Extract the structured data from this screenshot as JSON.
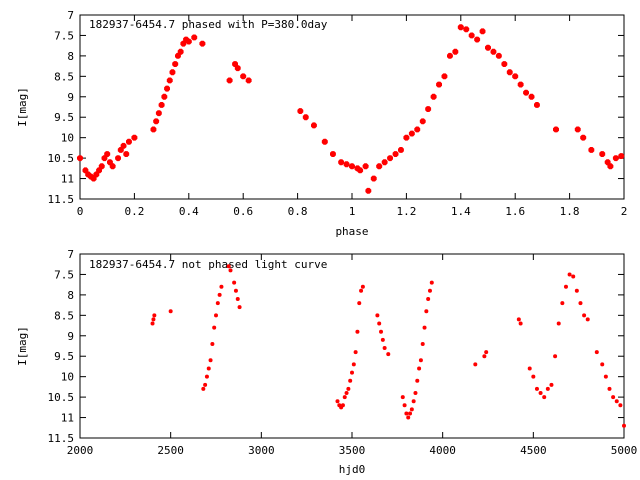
{
  "colors": {
    "points": "#ff0000",
    "axes": "#000000",
    "background": "#ffffff"
  },
  "chart_data": [
    {
      "type": "scatter",
      "title": "182937-6454.7 phased with P=380.0day",
      "xlabel": "phase",
      "ylabel": "I[mag]",
      "xlim": [
        0,
        2
      ],
      "ylim": [
        11.5,
        7
      ],
      "y_inverted": true,
      "xticks": [
        "0",
        "0.2",
        "0.4",
        "0.6",
        "0.8",
        "1",
        "1.2",
        "1.4",
        "1.6",
        "1.8",
        "2"
      ],
      "yticks": [
        "7",
        "7.5",
        "8",
        "8.5",
        "9",
        "9.5",
        "10",
        "10.5",
        "11",
        "11.5"
      ],
      "grid": false,
      "marker_color": "#ff0000",
      "series": [
        {
          "x": [
            0.0,
            0.02,
            0.03,
            0.04,
            0.05,
            0.06,
            0.07,
            0.08,
            0.09,
            0.1,
            0.11,
            0.12,
            0.14,
            0.15,
            0.16,
            0.17,
            0.18,
            0.2,
            0.27,
            0.28,
            0.29,
            0.3,
            0.31,
            0.32,
            0.33,
            0.34,
            0.35,
            0.36,
            0.37,
            0.38,
            0.39,
            0.4,
            0.42,
            0.45,
            0.55,
            0.57,
            0.58,
            0.6,
            0.62,
            0.81,
            0.83,
            0.86,
            0.9,
            0.93,
            0.96,
            0.98,
            1.0,
            1.02,
            1.03,
            1.05,
            1.06,
            1.08,
            1.1,
            1.12,
            1.14,
            1.16,
            1.18,
            1.2,
            1.22,
            1.24,
            1.26,
            1.28,
            1.3,
            1.32,
            1.34,
            1.36,
            1.38,
            1.4,
            1.42,
            1.44,
            1.46,
            1.48,
            1.5,
            1.52,
            1.54,
            1.56,
            1.58,
            1.6,
            1.62,
            1.64,
            1.66,
            1.68,
            1.75,
            1.83,
            1.85,
            1.88,
            1.92,
            1.94,
            1.95,
            1.97,
            1.99
          ],
          "y": [
            10.5,
            10.8,
            10.9,
            10.95,
            11.0,
            10.9,
            10.8,
            10.7,
            10.5,
            10.4,
            10.6,
            10.7,
            10.5,
            10.3,
            10.2,
            10.4,
            10.1,
            10.0,
            9.8,
            9.6,
            9.4,
            9.2,
            9.0,
            8.8,
            8.6,
            8.4,
            8.2,
            8.0,
            7.9,
            7.7,
            7.6,
            7.65,
            7.55,
            7.7,
            8.6,
            8.2,
            8.3,
            8.5,
            8.6,
            9.35,
            9.5,
            9.7,
            10.1,
            10.4,
            10.6,
            10.65,
            10.7,
            10.75,
            10.8,
            10.7,
            11.3,
            11.0,
            10.7,
            10.6,
            10.5,
            10.4,
            10.3,
            10.0,
            9.9,
            9.8,
            9.6,
            9.3,
            9.0,
            8.7,
            8.5,
            8.0,
            7.9,
            7.3,
            7.35,
            7.5,
            7.6,
            7.4,
            7.8,
            7.9,
            8.0,
            8.2,
            8.4,
            8.5,
            8.7,
            8.9,
            9.0,
            9.2,
            9.8,
            9.8,
            10.0,
            10.3,
            10.4,
            10.6,
            10.7,
            10.5,
            10.45
          ]
        }
      ]
    },
    {
      "type": "scatter",
      "title": "182937-6454.7 not phased light curve",
      "xlabel": "hjd0",
      "ylabel": "I[mag]",
      "xlim": [
        2000,
        5000
      ],
      "ylim": [
        11.5,
        7
      ],
      "y_inverted": true,
      "xticks": [
        "2000",
        "2500",
        "3000",
        "3500",
        "4000",
        "4500",
        "5000"
      ],
      "yticks": [
        "7",
        "7.5",
        "8",
        "8.5",
        "9",
        "9.5",
        "10",
        "10.5",
        "11",
        "11.5"
      ],
      "grid": false,
      "marker_color": "#ff0000",
      "series": [
        {
          "x": [
            2400,
            2405,
            2410,
            2500,
            2680,
            2690,
            2700,
            2710,
            2720,
            2730,
            2740,
            2750,
            2760,
            2770,
            2780,
            2820,
            2830,
            2850,
            2860,
            2870,
            2880,
            3420,
            3430,
            3440,
            3450,
            3460,
            3470,
            3480,
            3490,
            3500,
            3510,
            3520,
            3530,
            3540,
            3550,
            3560,
            3640,
            3650,
            3660,
            3670,
            3680,
            3700,
            3780,
            3790,
            3800,
            3810,
            3820,
            3830,
            3840,
            3850,
            3860,
            3870,
            3880,
            3890,
            3900,
            3910,
            3920,
            3930,
            3940,
            4180,
            4230,
            4240,
            4420,
            4430,
            4480,
            4500,
            4520,
            4540,
            4560,
            4580,
            4600,
            4620,
            4640,
            4660,
            4680,
            4700,
            4720,
            4740,
            4760,
            4780,
            4800,
            4850,
            4880,
            4900,
            4920,
            4940,
            4960,
            4980,
            5000
          ],
          "y": [
            8.7,
            8.6,
            8.5,
            8.4,
            10.3,
            10.2,
            10.0,
            9.8,
            9.6,
            9.2,
            8.8,
            8.5,
            8.2,
            8.0,
            7.8,
            7.3,
            7.4,
            7.7,
            7.9,
            8.1,
            8.3,
            10.6,
            10.7,
            10.75,
            10.7,
            10.5,
            10.4,
            10.3,
            10.1,
            9.9,
            9.7,
            9.4,
            8.9,
            8.2,
            7.9,
            7.8,
            8.5,
            8.7,
            8.9,
            9.1,
            9.3,
            9.45,
            10.5,
            10.7,
            10.9,
            11.0,
            10.9,
            10.8,
            10.6,
            10.4,
            10.1,
            9.8,
            9.6,
            9.2,
            8.8,
            8.4,
            8.1,
            7.9,
            7.7,
            9.7,
            9.5,
            9.4,
            8.6,
            8.7,
            9.8,
            10.0,
            10.3,
            10.4,
            10.5,
            10.3,
            10.2,
            9.5,
            8.7,
            8.2,
            7.8,
            7.5,
            7.55,
            7.9,
            8.2,
            8.5,
            8.6,
            9.4,
            9.7,
            10.0,
            10.3,
            10.5,
            10.6,
            10.7,
            11.2
          ]
        }
      ]
    }
  ]
}
